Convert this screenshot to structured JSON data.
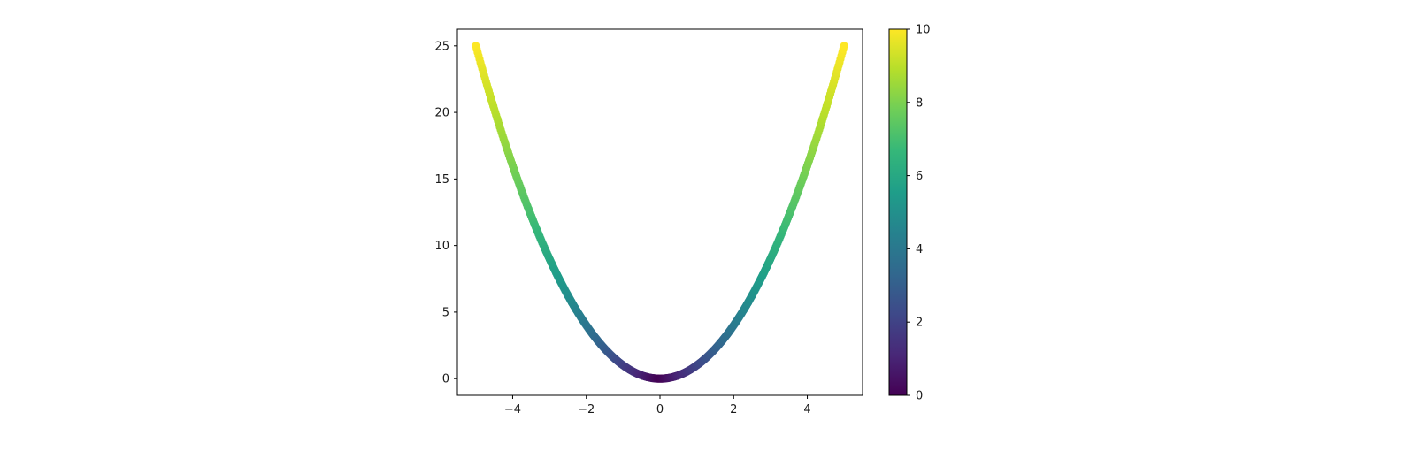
{
  "chart_data": {
    "type": "scatter",
    "title": "",
    "xlabel": "",
    "ylabel": "",
    "xlim": [
      -5.5,
      5.5
    ],
    "ylim": [
      -1.25,
      26.25
    ],
    "x_ticks": [
      -4,
      -2,
      0,
      2,
      4
    ],
    "x_tick_labels": [
      "−4",
      "−2",
      "0",
      "2",
      "4"
    ],
    "y_ticks": [
      0,
      5,
      10,
      15,
      20,
      25
    ],
    "y_tick_labels": [
      "0",
      "5",
      "10",
      "15",
      "20",
      "25"
    ],
    "grid": false,
    "series": [
      {
        "x_range": [
          -5,
          5
        ],
        "y_formula": "x^2",
        "color_value": "abs(2x)",
        "point_count": 400,
        "marker": "circle"
      }
    ],
    "colorbar": {
      "colormap": "viridis",
      "range": [
        0,
        10
      ],
      "ticks": [
        0,
        2,
        4,
        6,
        8,
        10
      ],
      "tick_labels": [
        "0",
        "2",
        "4",
        "6",
        "8",
        "10"
      ],
      "position": "right"
    },
    "colors": {
      "viridis_stops": [
        "#440154",
        "#482878",
        "#3e4989",
        "#31688e",
        "#26828e",
        "#1f9e89",
        "#35b779",
        "#6ece58",
        "#b5de2b",
        "#fde725"
      ]
    }
  }
}
